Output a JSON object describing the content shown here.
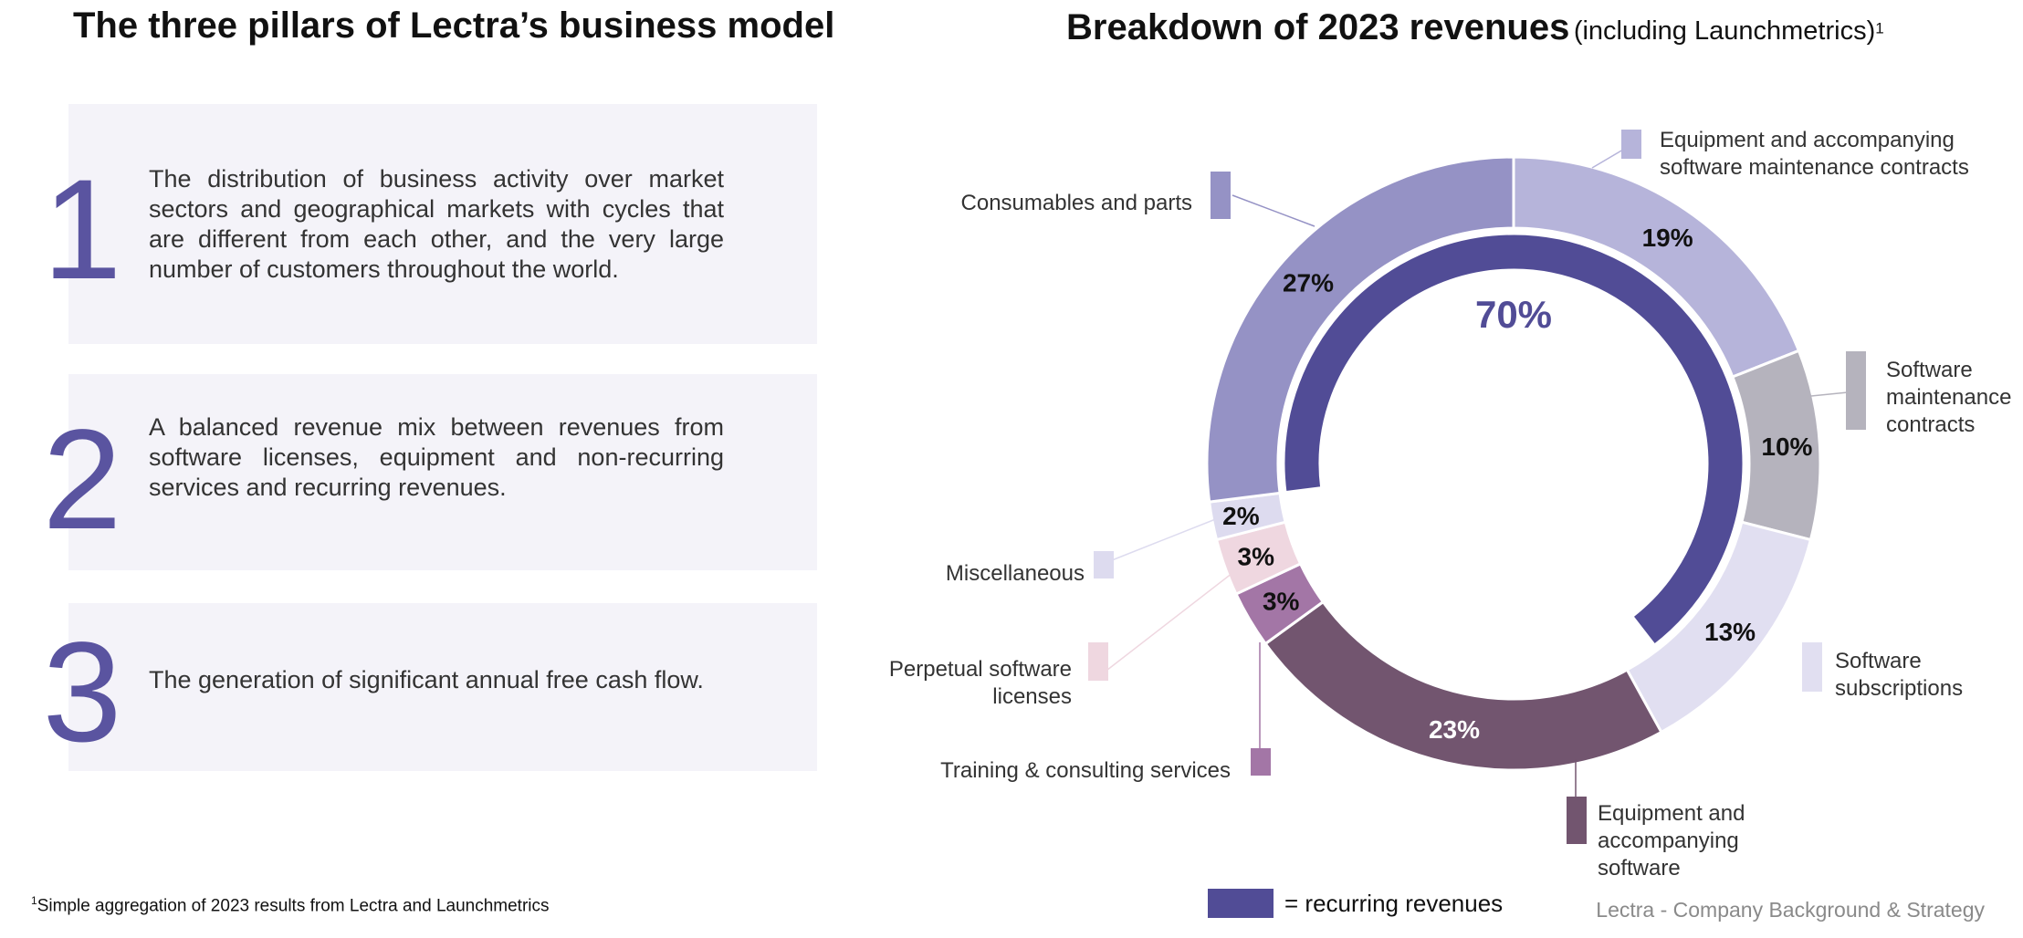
{
  "left": {
    "title": "The three pillars of Lectra’s business model",
    "pillars": [
      {
        "number": "1",
        "text": "The distribution of business activity over market sectors and geographical markets with cycles that are different from each other, and the very large number of customers throughout the world."
      },
      {
        "number": "2",
        "text": "A balanced revenue mix between revenues from software licenses, equipment and non-recurring services and recurring revenues."
      },
      {
        "number": "3",
        "text": "The generation of significant annual free cash flow."
      }
    ]
  },
  "right": {
    "title_main": "Breakdown of 2023 revenues",
    "title_sub": "(including Launchmetrics)",
    "title_sup": "1"
  },
  "chart_data": {
    "type": "donut",
    "title": "Breakdown of 2023 revenues (including Launchmetrics)",
    "unit": "%",
    "segments": [
      {
        "label": "Equipment and accompanying software maintenance contracts",
        "value": 19,
        "value_label": "19%",
        "color": "#b6b4da",
        "recurring": true
      },
      {
        "label": "Software maintenance contracts",
        "value": 10,
        "value_label": "10%",
        "color": "#b5b3bd",
        "recurring": true
      },
      {
        "label": "Software subscriptions",
        "value": 13,
        "value_label": "13%",
        "color": "#e1dff1",
        "recurring": true
      },
      {
        "label": "Equipment and accompanying software",
        "value": 23,
        "value_label": "23%",
        "color": "#72556f",
        "recurring": false
      },
      {
        "label": "Training & consulting services",
        "value": 3,
        "value_label": "3%",
        "color": "#a376a6",
        "recurring": false
      },
      {
        "label": "Perpetual software licenses",
        "value": 3,
        "value_label": "3%",
        "color": "#efd7e0",
        "recurring": false
      },
      {
        "label": "Miscellaneous",
        "value": 2,
        "value_label": "2%",
        "color": "#dddbef",
        "recurring": false
      },
      {
        "label": "Consumables and parts",
        "value": 27,
        "value_label": "27%",
        "color": "#9592c5",
        "recurring": true
      }
    ],
    "recurring_total": 70,
    "recurring_label": "70%",
    "recurring_color": "#514c96",
    "legend": {
      "label": "= recurring revenues"
    }
  },
  "footnote": {
    "sup": "1",
    "text": "Simple aggregation of 2023 results from Lectra and Launchmetrics"
  },
  "footer": {
    "text": "Lectra - Company Background & Strategy"
  }
}
